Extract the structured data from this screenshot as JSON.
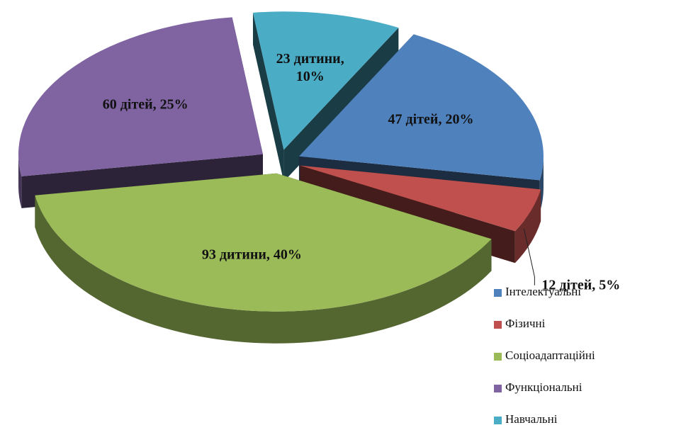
{
  "chart_data": {
    "type": "pie3d",
    "categories": [
      "Інтелектуальні",
      "Фізичні",
      "Соціоадаптаційні",
      "Функціональні",
      "Навчальні"
    ],
    "values": [
      47,
      12,
      93,
      60,
      23
    ],
    "value_labels": [
      "47 дітей, 20%",
      "12 дітей, 5%",
      "93 дитини, 40%",
      "60 дітей, 25%",
      "23 дитини, 10%"
    ],
    "colors": [
      "#4f81bd",
      "#c0504d",
      "#9bbb59",
      "#8064a2",
      "#4bacc6"
    ],
    "legend": "right"
  }
}
